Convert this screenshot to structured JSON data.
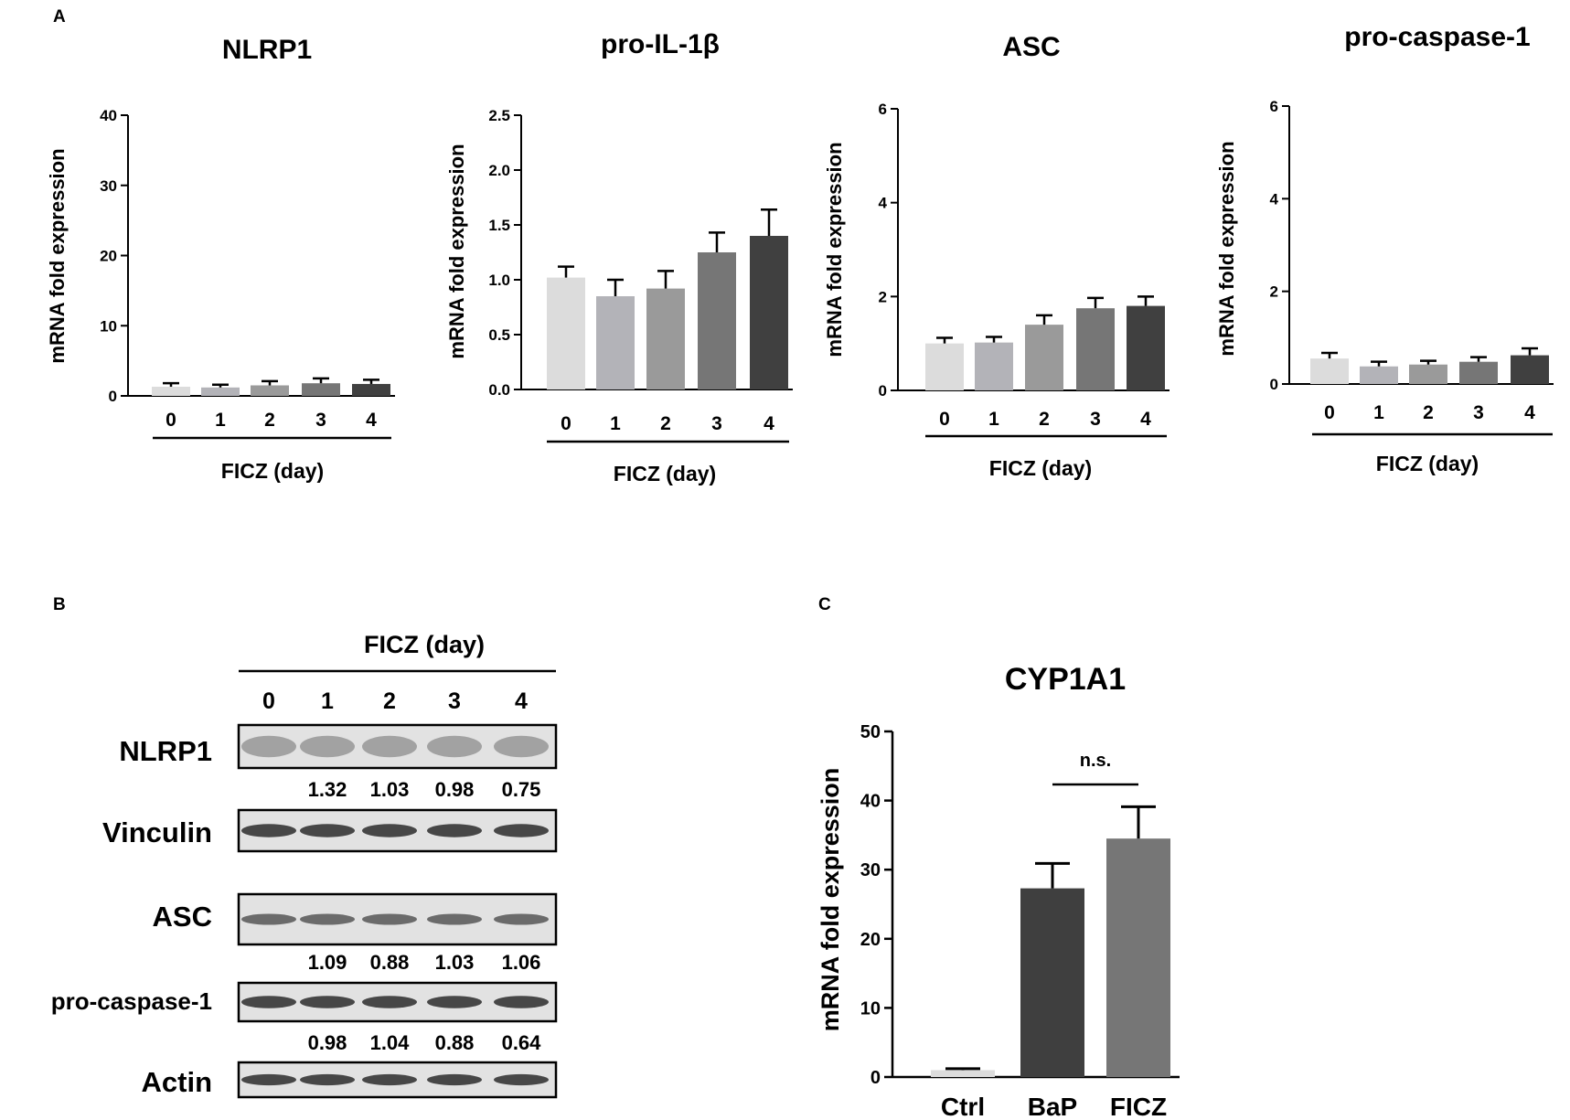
{
  "panels": {
    "A": {
      "label": "A",
      "xgroup_label": "FICZ (day)",
      "ylabel": "mRNA  fold expression"
    },
    "B": {
      "label": "B",
      "header": "FICZ (day)",
      "lanes": [
        "0",
        "1",
        "2",
        "3",
        "4"
      ],
      "rows": [
        {
          "name": "NLRP1",
          "quant": [
            "1.32",
            "1.03",
            "0.98",
            "0.75"
          ]
        },
        {
          "name": "Vinculin",
          "quant": []
        },
        {
          "name": "ASC",
          "quant": [
            "1.09",
            "0.88",
            "1.03",
            "1.06"
          ]
        },
        {
          "name": "pro-caspase-1",
          "quant": [
            "0.98",
            "1.04",
            "0.88",
            "0.64"
          ]
        },
        {
          "name": "Actin",
          "quant": []
        }
      ]
    },
    "C": {
      "label": "C"
    }
  },
  "colors": {
    "day0": "#dcdcdc",
    "day1": "#b3b3b8",
    "day2": "#9a9a9a",
    "day3": "#767676",
    "day4": "#404040",
    "ctrl": "#dcdcdc",
    "bap": "#3f3f3f",
    "ficz": "#767676",
    "blot_bg": "#e2e2e2",
    "band": "#2b2b2b"
  },
  "chart_data": [
    {
      "type": "bar",
      "panel": "A",
      "title": "NLRP1",
      "categories": [
        "0",
        "1",
        "2",
        "3",
        "4"
      ],
      "values": [
        1.3,
        1.2,
        1.5,
        1.8,
        1.7
      ],
      "errors": [
        0.5,
        0.4,
        0.6,
        0.7,
        0.6
      ],
      "ylim": [
        0,
        40
      ],
      "yticks": [
        "0",
        "10",
        "20",
        "30",
        "40"
      ],
      "xlabel": "FICZ (day)",
      "ylabel": "mRNA  fold expression"
    },
    {
      "type": "bar",
      "panel": "A",
      "title": "pro-IL-1β",
      "categories": [
        "0",
        "1",
        "2",
        "3",
        "4"
      ],
      "values": [
        1.02,
        0.85,
        0.92,
        1.25,
        1.4
      ],
      "errors": [
        0.1,
        0.15,
        0.16,
        0.18,
        0.24
      ],
      "ylim": [
        0,
        2.5
      ],
      "yticks": [
        "0.0",
        "0.5",
        "1.0",
        "1.5",
        "2.0",
        "2.5"
      ],
      "xlabel": "FICZ (day)",
      "ylabel": "mRNA  fold expression"
    },
    {
      "type": "bar",
      "panel": "A",
      "title": "ASC",
      "categories": [
        "0",
        "1",
        "2",
        "3",
        "4"
      ],
      "values": [
        1.0,
        1.02,
        1.4,
        1.75,
        1.8
      ],
      "errors": [
        0.12,
        0.12,
        0.2,
        0.22,
        0.2
      ],
      "ylim": [
        0,
        6
      ],
      "yticks": [
        "0",
        "2",
        "4",
        "6"
      ],
      "xlabel": "FICZ (day)",
      "ylabel": "mRNA  fold expression"
    },
    {
      "type": "bar",
      "panel": "A",
      "title": "pro-caspase-1",
      "categories": [
        "0",
        "1",
        "2",
        "3",
        "4"
      ],
      "values": [
        0.55,
        0.38,
        0.42,
        0.48,
        0.62
      ],
      "errors": [
        0.12,
        0.1,
        0.08,
        0.1,
        0.15
      ],
      "ylim": [
        0,
        6
      ],
      "yticks": [
        "0",
        "2",
        "4",
        "6"
      ],
      "xlabel": "FICZ (day)",
      "ylabel": "mRNA  fold expression"
    },
    {
      "type": "bar",
      "panel": "C",
      "title": "CYP1A1",
      "categories": [
        "Ctrl",
        "BaP",
        "FICZ"
      ],
      "values": [
        1.0,
        27.3,
        34.5
      ],
      "errors": [
        0.2,
        3.6,
        4.6
      ],
      "ylim": [
        0,
        50
      ],
      "yticks": [
        "0",
        "10",
        "20",
        "30",
        "40",
        "50"
      ],
      "ylabel": "mRNA  fold expression",
      "annotation": {
        "text": "n.s.",
        "between": [
          "BaP",
          "FICZ"
        ]
      }
    }
  ]
}
